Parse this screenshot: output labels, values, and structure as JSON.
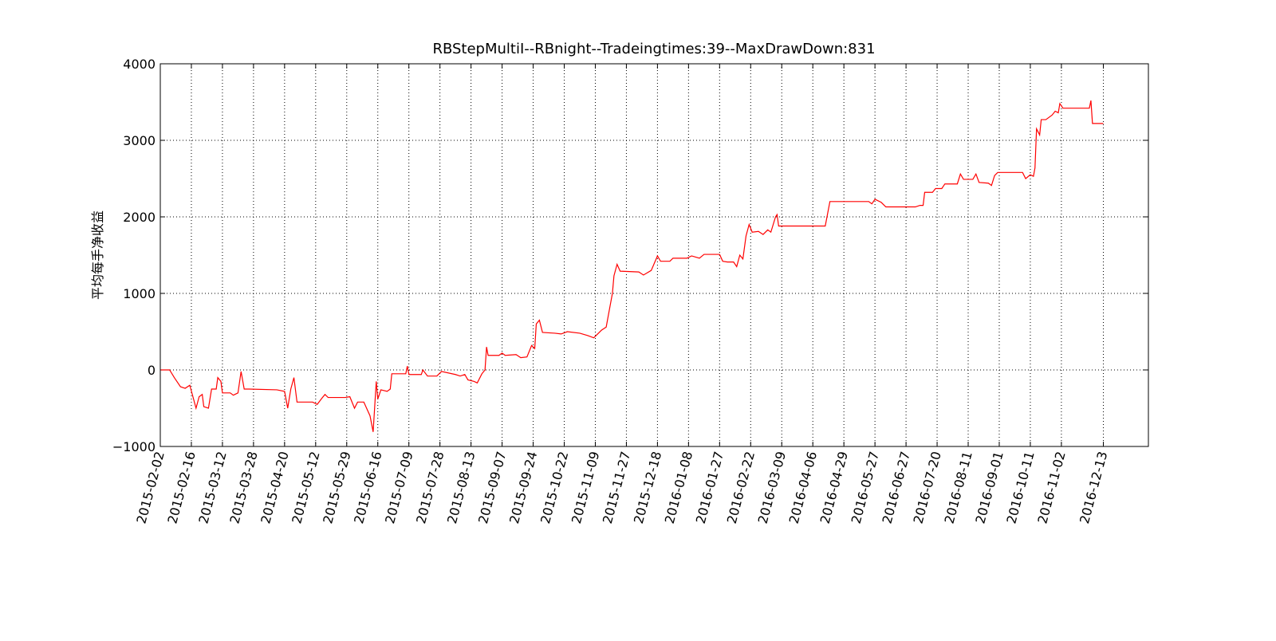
{
  "chart_data": {
    "type": "line",
    "title": "RBStepMultiI--RBnight--Tradeingtimes:39--MaxDrawDown:831",
    "y_label": "平均每手净收益",
    "color": "#ff0000",
    "grid": true,
    "xlim": [
      0,
      636
    ],
    "ylim": [
      -1000,
      4000
    ],
    "yticks": [
      {
        "value": -1000,
        "label": "−1000"
      },
      0,
      1000,
      2000,
      3000,
      4000
    ],
    "xticks": [
      {
        "value": 0,
        "label": "2015-02-02"
      },
      {
        "value": 20,
        "label": "2015-02-16"
      },
      {
        "value": 40,
        "label": "2015-03-12"
      },
      {
        "value": 60,
        "label": "2015-03-28"
      },
      {
        "value": 80,
        "label": "2015-04-20"
      },
      {
        "value": 100,
        "label": "2015-05-12"
      },
      {
        "value": 120,
        "label": "2015-05-29"
      },
      {
        "value": 140,
        "label": "2015-06-16"
      },
      {
        "value": 160,
        "label": "2015-07-09"
      },
      {
        "value": 180,
        "label": "2015-07-28"
      },
      {
        "value": 200,
        "label": "2015-08-13"
      },
      {
        "value": 220,
        "label": "2015-09-07"
      },
      {
        "value": 240,
        "label": "2015-09-24"
      },
      {
        "value": 260,
        "label": "2015-10-22"
      },
      {
        "value": 280,
        "label": "2015-11-09"
      },
      {
        "value": 300,
        "label": "2015-11-27"
      },
      {
        "value": 320,
        "label": "2015-12-18"
      },
      {
        "value": 340,
        "label": "2016-01-08"
      },
      {
        "value": 360,
        "label": "2016-01-27"
      },
      {
        "value": 380,
        "label": "2016-02-22"
      },
      {
        "value": 400,
        "label": "2016-03-09"
      },
      {
        "value": 420,
        "label": "2016-04-06"
      },
      {
        "value": 440,
        "label": "2016-04-29"
      },
      {
        "value": 460,
        "label": "2016-05-27"
      },
      {
        "value": 480,
        "label": "2016-06-27"
      },
      {
        "value": 500,
        "label": "2016-07-20"
      },
      {
        "value": 520,
        "label": "2016-08-11"
      },
      {
        "value": 540,
        "label": "2016-09-01"
      },
      {
        "value": 560,
        "label": "2016-10-11"
      },
      {
        "value": 580,
        "label": "2016-11-02"
      },
      {
        "value": 607,
        "label": "2016-12-13"
      }
    ],
    "x": [
      0,
      6,
      9,
      13,
      16,
      19,
      21,
      23,
      25,
      27,
      28,
      31,
      33,
      36,
      37,
      39,
      40,
      45,
      47,
      50,
      52,
      54,
      57,
      75,
      80,
      82,
      84,
      86,
      88,
      98,
      101,
      104,
      106,
      108,
      119,
      122,
      125,
      127,
      131,
      135,
      137,
      139,
      140,
      142,
      146,
      148,
      149,
      158,
      159,
      160,
      168,
      169,
      172,
      178,
      181,
      190,
      193,
      196,
      198,
      202,
      204,
      207,
      209,
      210,
      211,
      218,
      220,
      222,
      229,
      232,
      236,
      239,
      241,
      242,
      244,
      246,
      254,
      258,
      262,
      270,
      275,
      279,
      282,
      284,
      287,
      291,
      292,
      294,
      296,
      308,
      311,
      316,
      320,
      322,
      328,
      330,
      339,
      342,
      347,
      350,
      360,
      362,
      365,
      369,
      371,
      373,
      375,
      377,
      379,
      381,
      385,
      388,
      391,
      393,
      396,
      397,
      398,
      428,
      431,
      456,
      458,
      460,
      464,
      467,
      486,
      489,
      491,
      492,
      497,
      499,
      503,
      505,
      513,
      515,
      517,
      523,
      525,
      527,
      533,
      535,
      537,
      539,
      555,
      557,
      560,
      562,
      563,
      564,
      566,
      567,
      570,
      574,
      576,
      578,
      579,
      581,
      598,
      599,
      600,
      607
    ],
    "values": [
      0,
      0,
      -100,
      -220,
      -240,
      -200,
      -350,
      -500,
      -350,
      -320,
      -480,
      -500,
      -250,
      -250,
      -100,
      -150,
      -300,
      -300,
      -330,
      -300,
      -20,
      -250,
      -250,
      -260,
      -280,
      -500,
      -250,
      -100,
      -420,
      -420,
      -450,
      -370,
      -320,
      -360,
      -360,
      -350,
      -500,
      -420,
      -420,
      -600,
      -810,
      -150,
      -380,
      -260,
      -280,
      -250,
      -50,
      -50,
      50,
      -60,
      -60,
      0,
      -80,
      -80,
      -20,
      -60,
      -80,
      -60,
      -130,
      -150,
      -170,
      -50,
      0,
      300,
      190,
      190,
      220,
      190,
      200,
      160,
      170,
      320,
      280,
      600,
      650,
      490,
      480,
      470,
      500,
      480,
      450,
      420,
      480,
      520,
      560,
      1000,
      1230,
      1380,
      1290,
      1280,
      1240,
      1300,
      1490,
      1420,
      1420,
      1460,
      1460,
      1490,
      1460,
      1510,
      1510,
      1420,
      1410,
      1410,
      1350,
      1500,
      1450,
      1750,
      1900,
      1800,
      1810,
      1770,
      1830,
      1800,
      2000,
      2030,
      1880,
      1880,
      2200,
      2200,
      2170,
      2230,
      2190,
      2130,
      2130,
      2150,
      2150,
      2320,
      2320,
      2370,
      2370,
      2430,
      2430,
      2560,
      2490,
      2490,
      2560,
      2450,
      2440,
      2410,
      2540,
      2580,
      2580,
      2500,
      2550,
      2530,
      2640,
      3150,
      3070,
      3270,
      3270,
      3330,
      3380,
      3360,
      3480,
      3420,
      3420,
      3520,
      3220,
      3220
    ]
  }
}
